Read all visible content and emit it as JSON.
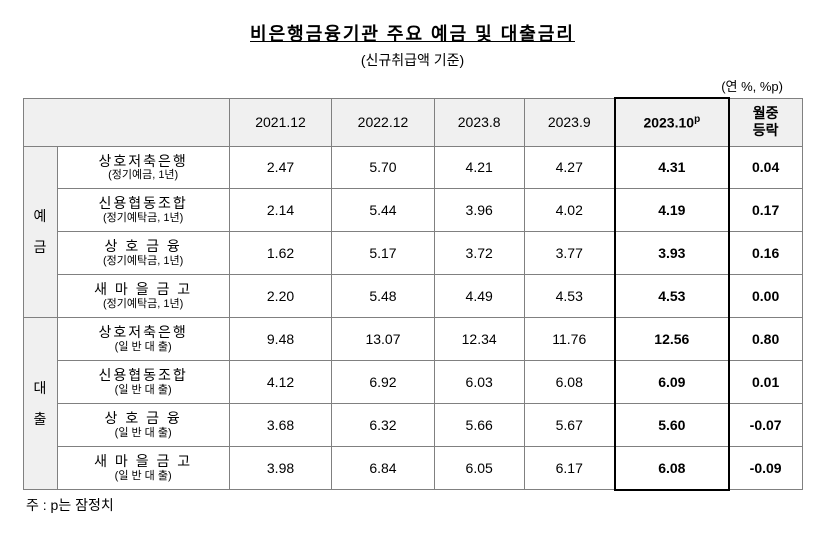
{
  "title": "비은행금융기관 주요 예금 및 대출금리",
  "subtitle": "(신규취급액 기준)",
  "unit": "(연 %, %p)",
  "columns": {
    "c1": "2021.12",
    "c2": "2022.12",
    "c3": "2023.8",
    "c4": "2023.9",
    "c5_html": "2023.10",
    "c5_sup": "p",
    "c6_l1": "월중",
    "c6_l2": "등락"
  },
  "groups": {
    "deposit_l1": "예",
    "deposit_l2": "금",
    "loan_l1": "대",
    "loan_l2": "출"
  },
  "rows": {
    "d1": {
      "main": "상호저축은행",
      "sub": "(정기예금, 1년)",
      "v": [
        "2.47",
        "5.70",
        "4.21",
        "4.27",
        "4.31",
        "0.04"
      ]
    },
    "d2": {
      "main": "신용협동조합",
      "sub": "(정기예탁금, 1년)",
      "v": [
        "2.14",
        "5.44",
        "3.96",
        "4.02",
        "4.19",
        "0.17"
      ]
    },
    "d3": {
      "main": "상 호   금 융",
      "sub": "(정기예탁금, 1년)",
      "v": [
        "1.62",
        "5.17",
        "3.72",
        "3.77",
        "3.93",
        "0.16"
      ]
    },
    "d4": {
      "main": "새 마 을 금 고",
      "sub": "(정기예탁금, 1년)",
      "v": [
        "2.20",
        "5.48",
        "4.49",
        "4.53",
        "4.53",
        "0.00"
      ]
    },
    "l1": {
      "main": "상호저축은행",
      "sub": "(일 반 대 출)",
      "v": [
        "9.48",
        "13.07",
        "12.34",
        "11.76",
        "12.56",
        "0.80"
      ]
    },
    "l2": {
      "main": "신용협동조합",
      "sub": "(일 반 대 출)",
      "v": [
        "4.12",
        "6.92",
        "6.03",
        "6.08",
        "6.09",
        "0.01"
      ]
    },
    "l3": {
      "main": "상 호   금 융",
      "sub": "(일 반 대 출)",
      "v": [
        "3.68",
        "6.32",
        "5.66",
        "5.67",
        "5.60",
        "-0.07"
      ]
    },
    "l4": {
      "main": "새 마 을 금 고",
      "sub": "(일 반 대 출)",
      "v": [
        "3.98",
        "6.84",
        "6.05",
        "6.17",
        "6.08",
        "-0.09"
      ]
    }
  },
  "footnote": "주 : p는 잠정치",
  "style": {
    "title_fontsize": 18,
    "cell_fontsize": 14,
    "sub_fontsize": 11,
    "border_color": "#808080",
    "highlight_border_color": "#000000",
    "header_bg": "#f0f0f0",
    "background": "#ffffff"
  }
}
